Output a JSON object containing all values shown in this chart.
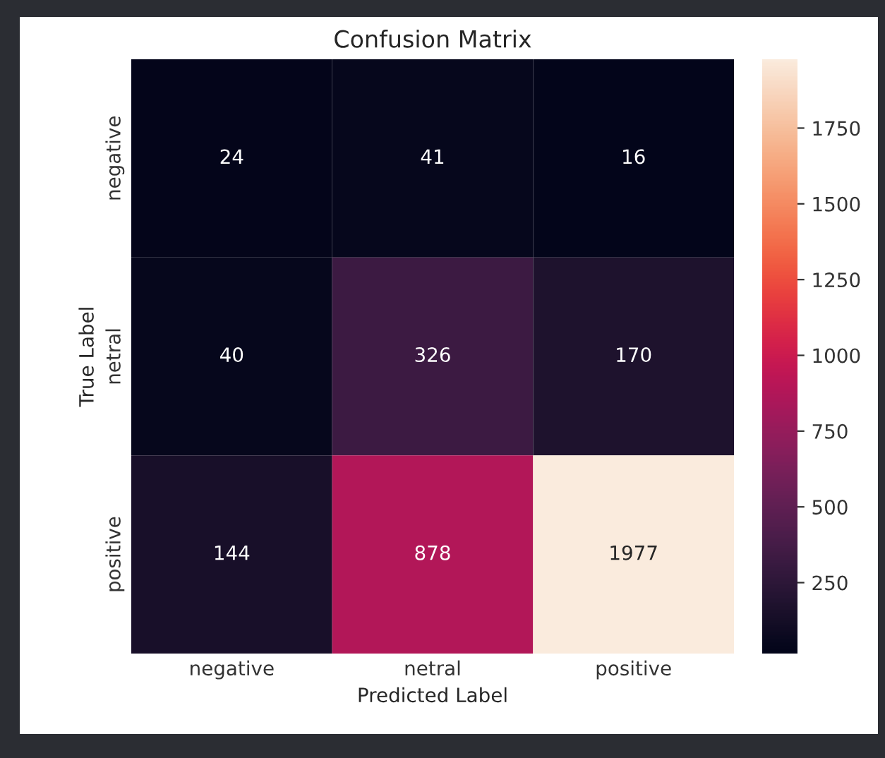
{
  "chart_data": {
    "type": "heatmap",
    "title": "Confusion Matrix",
    "xlabel": "Predicted Label",
    "ylabel": "True Label",
    "categories": [
      "negative",
      "netral",
      "positive"
    ],
    "y_categories": [
      "negative",
      "netral",
      "positive"
    ],
    "cells": [
      [
        24,
        41,
        16
      ],
      [
        40,
        326,
        170
      ],
      [
        144,
        878,
        1977
      ]
    ],
    "data_labels": true,
    "clim": [
      16,
      1977
    ],
    "cticks": [
      250,
      500,
      750,
      1000,
      1250,
      1500,
      1750
    ]
  }
}
